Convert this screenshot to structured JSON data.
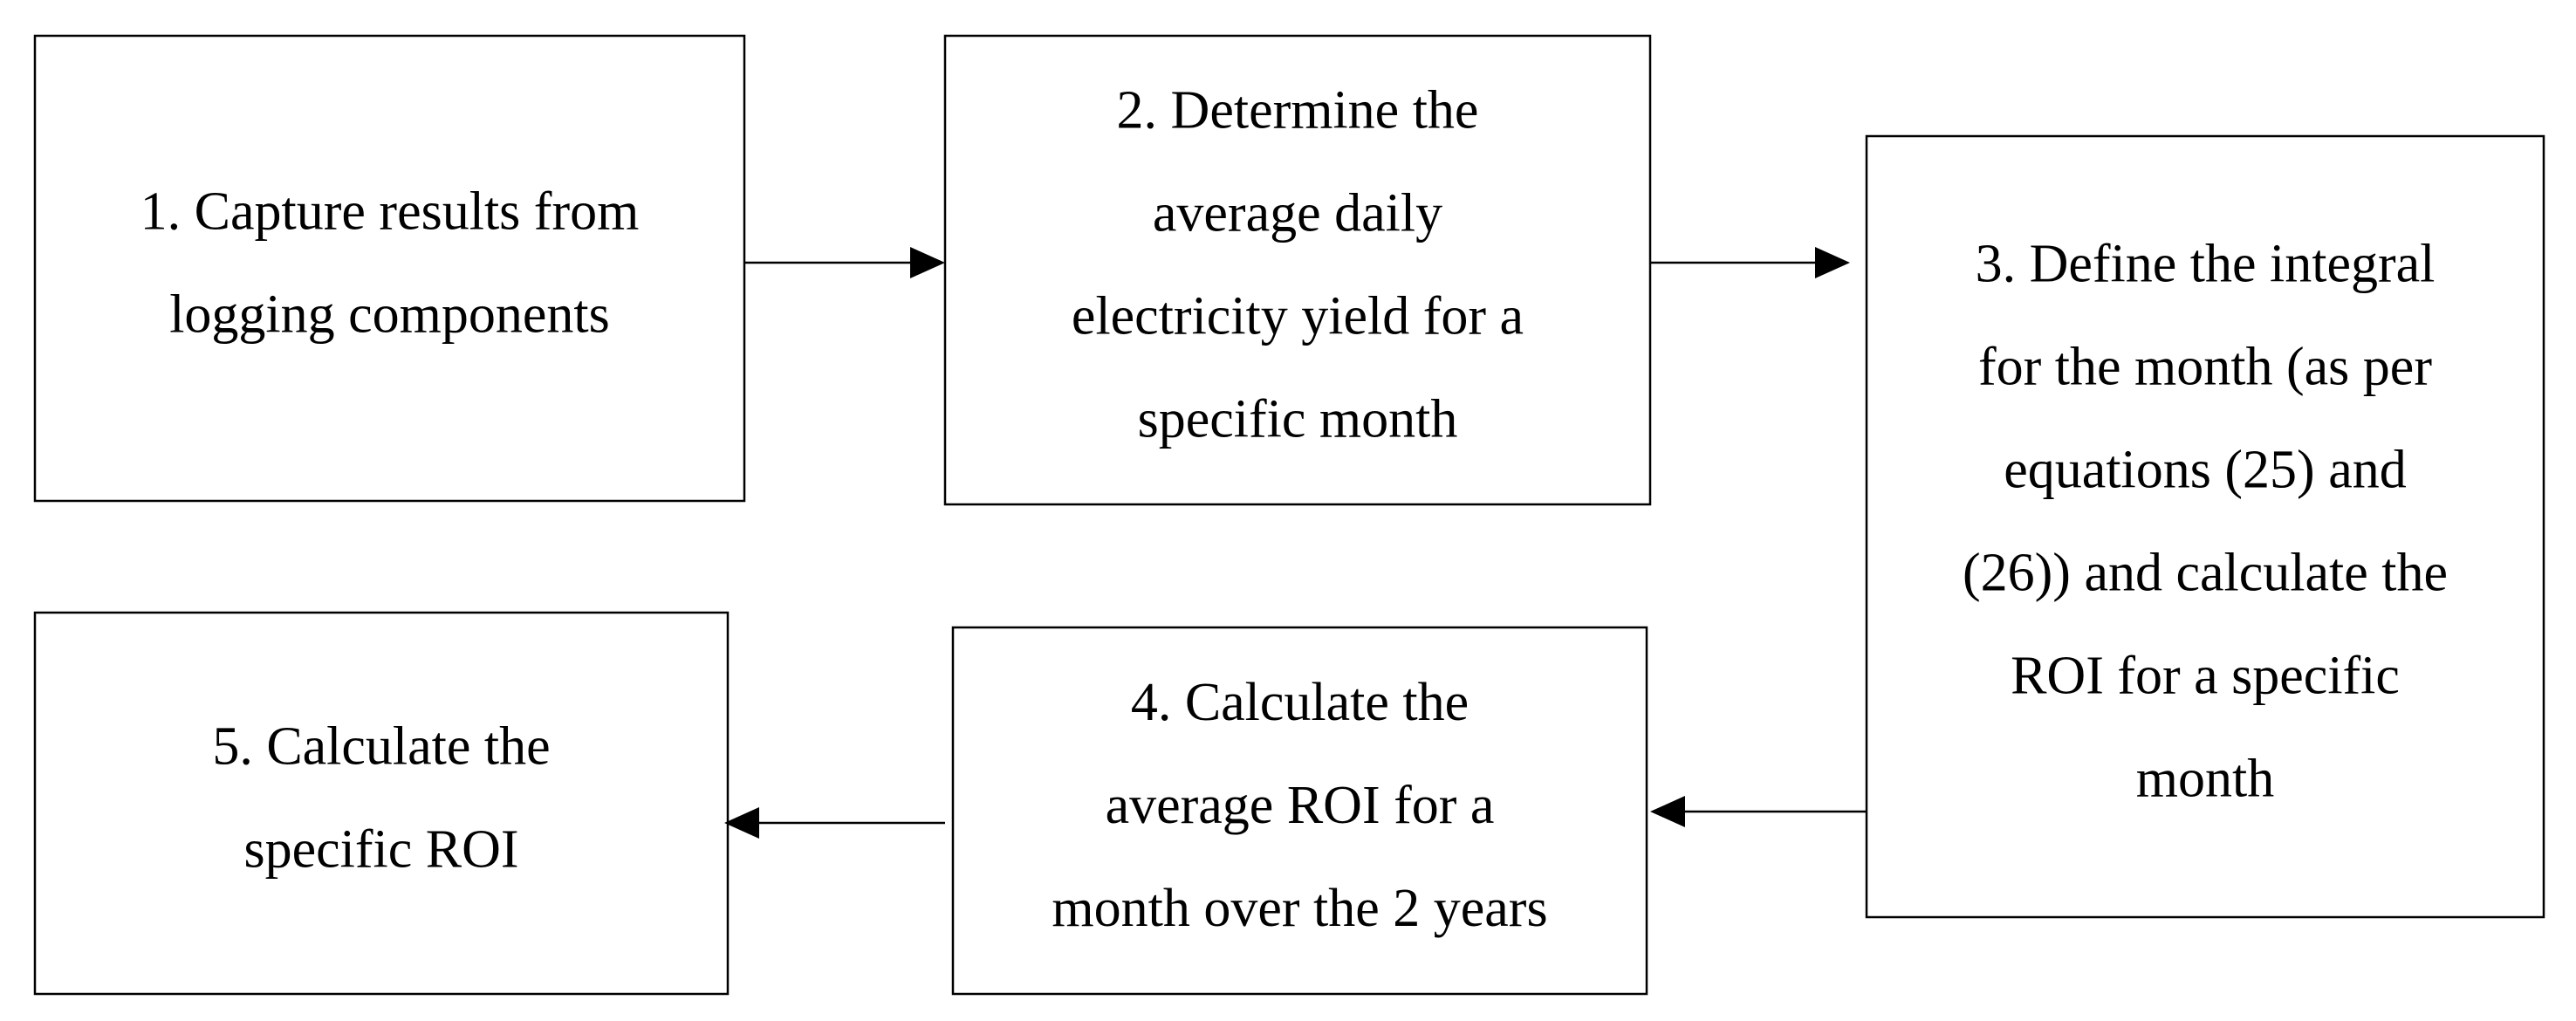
{
  "nodes": [
    {
      "lines": [
        "1. Capture results from",
        "logging components"
      ]
    },
    {
      "lines": [
        "2. Determine the",
        "average daily",
        "electricity yield for a",
        "specific month"
      ]
    },
    {
      "lines": [
        "3. Define the integral",
        "for the month (as per",
        "equations (25) and",
        "(26)) and calculate the",
        "ROI for a specific",
        "month"
      ]
    },
    {
      "lines": [
        "4. Calculate the",
        "average ROI for a",
        "month over the 2 years"
      ]
    },
    {
      "lines": [
        "5. Calculate the",
        "specific ROI"
      ]
    }
  ]
}
